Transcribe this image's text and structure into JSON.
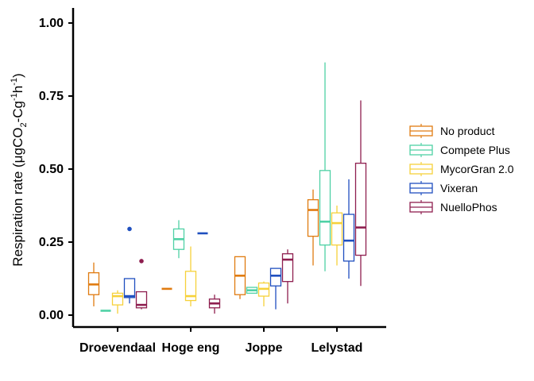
{
  "chart_data": {
    "type": "boxplot",
    "ylabel": {
      "prefix": "Respiration rate (",
      "mu": "μ",
      "unit_a": "gCO",
      "sub2": "2",
      "unit_b": "-Cg",
      "sup1": "-1",
      "unit_c": "h",
      "sup2": "-1",
      "suffix": ")"
    },
    "xlabel": "",
    "ylim": [
      -0.05,
      1.05
    ],
    "yticks": [
      0.0,
      0.25,
      0.5,
      0.75,
      1.0
    ],
    "ytick_labels": [
      "0.00",
      "0.25",
      "0.50",
      "0.75",
      "1.00"
    ],
    "categories": [
      "Droevendaal",
      "Hoge eng",
      "Joppe",
      "Lelystad"
    ],
    "legend_position": "right",
    "series": [
      {
        "name": "No product",
        "color": "#E07B10",
        "boxes": [
          {
            "min": 0.03,
            "q1": 0.07,
            "median": 0.105,
            "q3": 0.145,
            "max": 0.18,
            "outliers": []
          },
          {
            "min": 0.09,
            "q1": 0.09,
            "median": 0.09,
            "q3": 0.09,
            "max": 0.09,
            "outliers": []
          },
          {
            "min": 0.055,
            "q1": 0.07,
            "median": 0.135,
            "q3": 0.2,
            "max": 0.2,
            "outliers": []
          },
          {
            "min": 0.17,
            "q1": 0.27,
            "median": 0.36,
            "q3": 0.395,
            "max": 0.43,
            "outliers": []
          }
        ]
      },
      {
        "name": "Compete Plus",
        "color": "#4FD1A5",
        "boxes": [
          {
            "min": 0.015,
            "q1": 0.015,
            "median": 0.015,
            "q3": 0.015,
            "max": 0.015,
            "outliers": []
          },
          {
            "min": 0.195,
            "q1": 0.225,
            "median": 0.26,
            "q3": 0.295,
            "max": 0.325,
            "outliers": []
          },
          {
            "min": 0.075,
            "q1": 0.075,
            "median": 0.085,
            "q3": 0.095,
            "max": 0.095,
            "outliers": []
          },
          {
            "min": 0.15,
            "q1": 0.24,
            "median": 0.32,
            "q3": 0.495,
            "max": 0.865,
            "outliers": []
          }
        ]
      },
      {
        "name": "MycorGran 2.0",
        "color": "#F6D13A",
        "boxes": [
          {
            "min": 0.005,
            "q1": 0.035,
            "median": 0.065,
            "q3": 0.075,
            "max": 0.085,
            "outliers": []
          },
          {
            "min": 0.03,
            "q1": 0.05,
            "median": 0.065,
            "q3": 0.15,
            "max": 0.235,
            "outliers": []
          },
          {
            "min": 0.03,
            "q1": 0.065,
            "median": 0.09,
            "q3": 0.11,
            "max": 0.115,
            "outliers": []
          },
          {
            "min": 0.17,
            "q1": 0.24,
            "median": 0.315,
            "q3": 0.35,
            "max": 0.375,
            "outliers": []
          }
        ]
      },
      {
        "name": "Vixeran",
        "color": "#1F4FBF",
        "boxes": [
          {
            "min": 0.04,
            "q1": 0.06,
            "median": 0.065,
            "q3": 0.125,
            "max": 0.125,
            "outliers": [
              0.295
            ]
          },
          {
            "min": 0.28,
            "q1": 0.28,
            "median": 0.28,
            "q3": 0.28,
            "max": 0.28,
            "outliers": []
          },
          {
            "min": 0.02,
            "q1": 0.1,
            "median": 0.135,
            "q3": 0.16,
            "max": 0.16,
            "outliers": []
          },
          {
            "min": 0.125,
            "q1": 0.185,
            "median": 0.255,
            "q3": 0.345,
            "max": 0.465,
            "outliers": []
          }
        ]
      },
      {
        "name": "NuelloPhos",
        "color": "#8E1E4F",
        "boxes": [
          {
            "min": 0.02,
            "q1": 0.025,
            "median": 0.035,
            "q3": 0.08,
            "max": 0.08,
            "outliers": [
              0.185
            ]
          },
          {
            "min": 0.005,
            "q1": 0.025,
            "median": 0.04,
            "q3": 0.055,
            "max": 0.07,
            "outliers": []
          },
          {
            "min": 0.04,
            "q1": 0.115,
            "median": 0.19,
            "q3": 0.21,
            "max": 0.225,
            "outliers": []
          },
          {
            "min": 0.1,
            "q1": 0.205,
            "median": 0.3,
            "q3": 0.52,
            "max": 0.735,
            "outliers": []
          }
        ]
      }
    ]
  }
}
